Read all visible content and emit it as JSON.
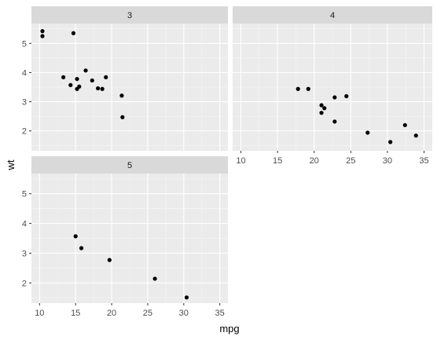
{
  "chart_data": {
    "type": "scatter",
    "xlabel": "mpg",
    "ylabel": "wt",
    "xlim": [
      10,
      35
    ],
    "ylim": [
      1.5,
      5.5
    ],
    "x_ticks": [
      10,
      15,
      20,
      25,
      30,
      35
    ],
    "y_ticks": [
      2,
      3,
      4,
      5
    ],
    "x_tick_labels": [
      "10",
      "15",
      "20",
      "25",
      "30",
      "35"
    ],
    "y_tick_labels": [
      "2",
      "3",
      "4",
      "5"
    ],
    "grid": true,
    "facets": [
      {
        "label": "3",
        "points": [
          {
            "x": 10.4,
            "y": 5.25
          },
          {
            "x": 10.4,
            "y": 5.42
          },
          {
            "x": 14.7,
            "y": 5.35
          },
          {
            "x": 13.3,
            "y": 3.84
          },
          {
            "x": 14.3,
            "y": 3.57
          },
          {
            "x": 15.2,
            "y": 3.78
          },
          {
            "x": 15.2,
            "y": 3.44
          },
          {
            "x": 15.5,
            "y": 3.52
          },
          {
            "x": 16.4,
            "y": 4.07
          },
          {
            "x": 17.3,
            "y": 3.73
          },
          {
            "x": 18.1,
            "y": 3.46
          },
          {
            "x": 18.7,
            "y": 3.44
          },
          {
            "x": 19.2,
            "y": 3.84
          },
          {
            "x": 21.4,
            "y": 3.21
          },
          {
            "x": 21.5,
            "y": 2.47
          }
        ]
      },
      {
        "label": "4",
        "points": [
          {
            "x": 17.8,
            "y": 3.44
          },
          {
            "x": 19.2,
            "y": 3.44
          },
          {
            "x": 21.0,
            "y": 2.88
          },
          {
            "x": 21.0,
            "y": 2.62
          },
          {
            "x": 21.4,
            "y": 2.78
          },
          {
            "x": 22.8,
            "y": 3.15
          },
          {
            "x": 22.8,
            "y": 2.32
          },
          {
            "x": 24.4,
            "y": 3.19
          },
          {
            "x": 27.3,
            "y": 1.94
          },
          {
            "x": 30.4,
            "y": 1.62
          },
          {
            "x": 32.4,
            "y": 2.2
          },
          {
            "x": 33.9,
            "y": 1.84
          }
        ]
      },
      {
        "label": "5",
        "points": [
          {
            "x": 15.0,
            "y": 3.57
          },
          {
            "x": 15.8,
            "y": 3.17
          },
          {
            "x": 19.7,
            "y": 2.77
          },
          {
            "x": 26.0,
            "y": 2.14
          },
          {
            "x": 30.4,
            "y": 1.51
          }
        ]
      }
    ]
  }
}
